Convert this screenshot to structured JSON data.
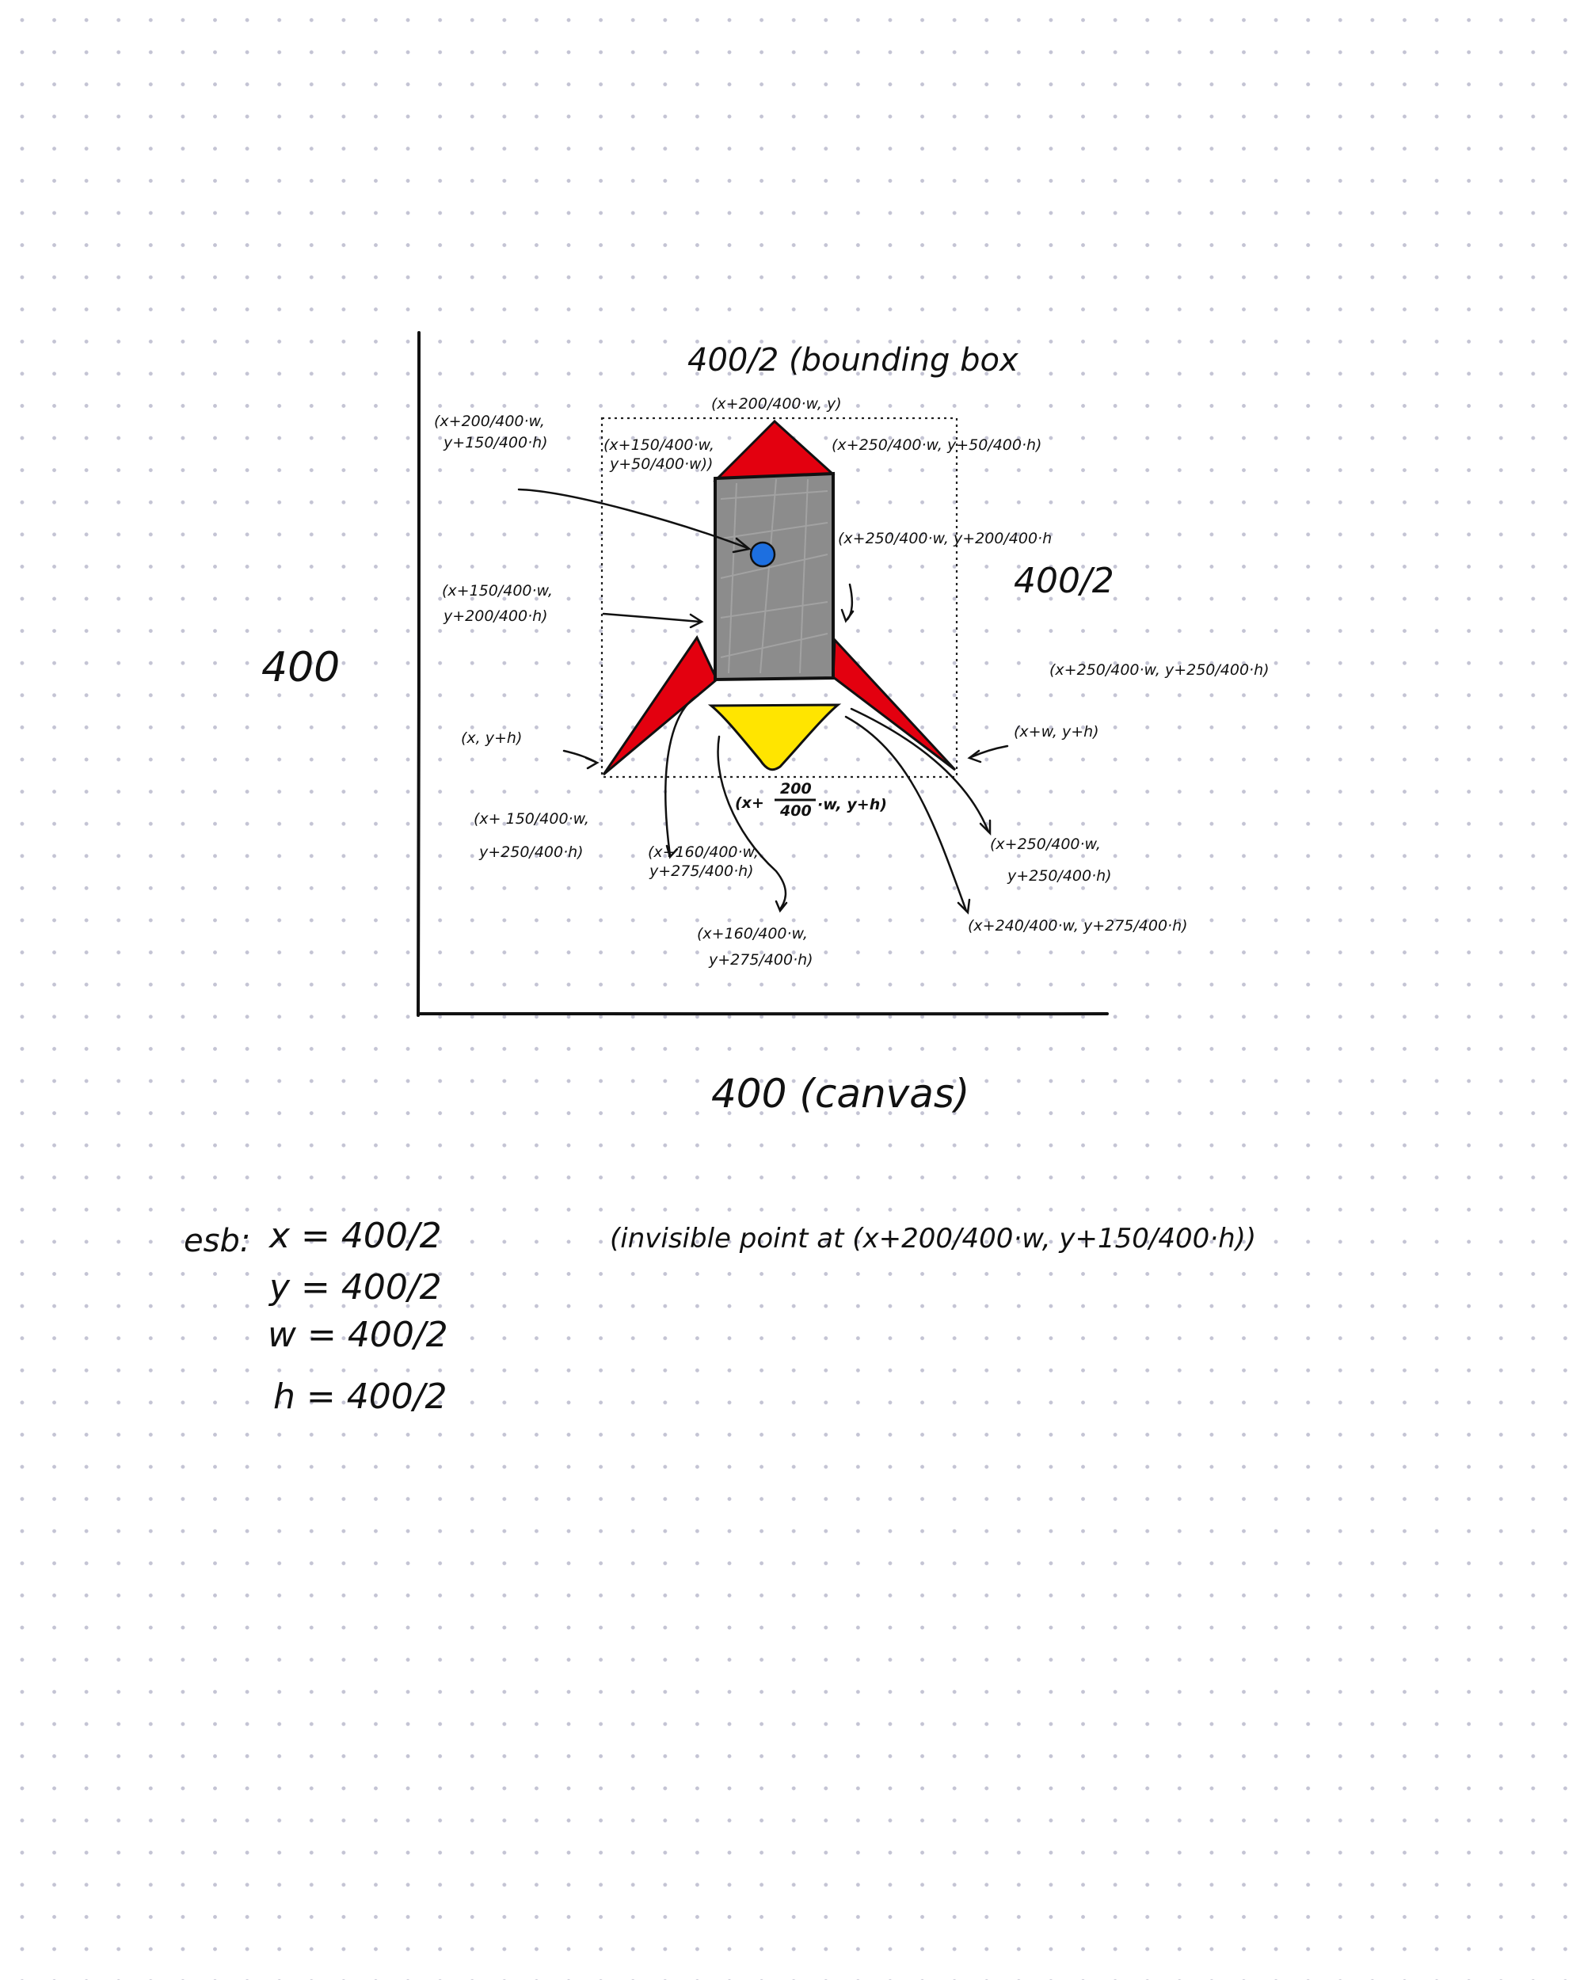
{
  "labels": {
    "bounding_box_width": "400/2 (bounding box",
    "bounding_box_height": "400/2",
    "canvas_height": "400",
    "canvas_width": "400 (canvas)",
    "invisible_point": "(invisible point at (x+200/400·w, y+150/400·h))"
  },
  "points": {
    "tip": "(x+200/400·w, y)",
    "window_center": "(x+200/400·w, y+150/400·h)",
    "body_top_left": "(x+150/400·w, y+50/400·w))",
    "body_top_right": "(x+250/400·w, y+50/400·h)",
    "body_bottom_right": "(x+250/400·w, y+200/400·h",
    "body_bottom_left": "(x+150/400·w, y+200/400·h)",
    "right_fin_top": "(x+250/400·w, y+250/400·h)",
    "bottom_left": "(x, y+h)",
    "bottom_right": "(x+w, y+h)",
    "bottom_center_prefix": "(x+",
    "bottom_center_num": "200",
    "bottom_center_den": "400",
    "bottom_center_suffix": "·w, y+h)",
    "left_fin_top": "(x+150/400·w, y+250/400·h)",
    "flame_bl": "(x+160/400·w, y+275/400·h)",
    "flame_tl": "(x+160/400·w, y+275/400·h)",
    "flame_tr": "(x+250/400·w, y+250/400·h)",
    "flame_br": "(x+240/400·w, y+275/400·h)"
  },
  "example": {
    "prefix": "esb:",
    "x": "x = 400/2",
    "y": "y = 400/2",
    "w": "w = 400/2",
    "h": "h = 400/2"
  },
  "colors": {
    "nose_and_fins": "#e3000f",
    "body": "#8c8c8c",
    "window": "#1d6fe0",
    "flame": "#ffe500",
    "ink": "#111111"
  }
}
